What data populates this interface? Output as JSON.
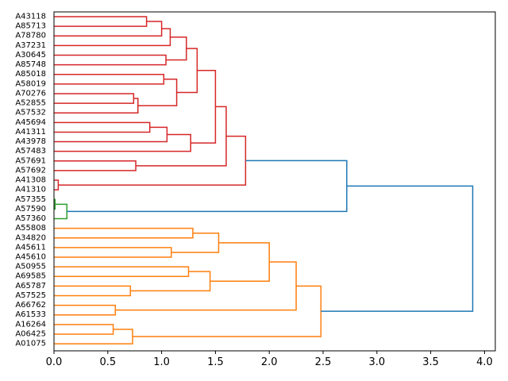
{
  "chart_data": {
    "type": "dendrogram",
    "orientation": "horizontal",
    "xlabel": "",
    "ylabel": "",
    "xlim": [
      0,
      4.1
    ],
    "xticks": [
      0.0,
      0.5,
      1.0,
      1.5,
      2.0,
      2.5,
      3.0,
      3.5,
      4.0
    ],
    "xtick_labels": [
      "0.0",
      "0.5",
      "1.0",
      "1.5",
      "2.0",
      "2.5",
      "3.0",
      "3.5",
      "4.0"
    ],
    "colors": {
      "red": "#d62728",
      "green": "#2ca02c",
      "orange": "#ff7f0e",
      "blue": "#1f77b4"
    },
    "leaves": [
      "A43118",
      "A85713",
      "A78780",
      "A37231",
      "A30645",
      "A85748",
      "A85018",
      "A58019",
      "A70276",
      "A52855",
      "A57532",
      "A45694",
      "A41311",
      "A43978",
      "A57483",
      "A57691",
      "A57692",
      "A41308",
      "A41310",
      "A57355",
      "A57590",
      "A57360",
      "A55808",
      "A34820",
      "A45611",
      "A45610",
      "A50955",
      "A69585",
      "A65787",
      "A57525",
      "A66762",
      "A61533",
      "A16264",
      "A06425",
      "A01075"
    ],
    "merges": [
      {
        "id": "m1",
        "children": [
          "A43118",
          "A85713"
        ],
        "height": 0.86,
        "color": "red"
      },
      {
        "id": "m2",
        "children": [
          "m1",
          "A78780"
        ],
        "height": 1.0,
        "color": "red"
      },
      {
        "id": "m3",
        "children": [
          "m2",
          "A37231"
        ],
        "height": 1.08,
        "color": "red"
      },
      {
        "id": "m4",
        "children": [
          "A30645",
          "A85748"
        ],
        "height": 1.04,
        "color": "red"
      },
      {
        "id": "m5",
        "children": [
          "m3",
          "m4"
        ],
        "height": 1.23,
        "color": "red"
      },
      {
        "id": "m6",
        "children": [
          "A85018",
          "A58019"
        ],
        "height": 1.02,
        "color": "red"
      },
      {
        "id": "m7",
        "children": [
          "A70276",
          "A52855"
        ],
        "height": 0.74,
        "color": "red"
      },
      {
        "id": "m8",
        "children": [
          "m7",
          "A57532"
        ],
        "height": 0.78,
        "color": "red"
      },
      {
        "id": "m9",
        "children": [
          "m6",
          "m8"
        ],
        "height": 1.14,
        "color": "red"
      },
      {
        "id": "m10",
        "children": [
          "m5",
          "m9"
        ],
        "height": 1.33,
        "color": "red"
      },
      {
        "id": "m11",
        "children": [
          "A45694",
          "A41311"
        ],
        "height": 0.89,
        "color": "red"
      },
      {
        "id": "m12",
        "children": [
          "m11",
          "A43978"
        ],
        "height": 1.05,
        "color": "red"
      },
      {
        "id": "m13",
        "children": [
          "m12",
          "A57483"
        ],
        "height": 1.27,
        "color": "red"
      },
      {
        "id": "m14",
        "children": [
          "m10",
          "m13"
        ],
        "height": 1.5,
        "color": "red"
      },
      {
        "id": "m15",
        "children": [
          "A57691",
          "A57692"
        ],
        "height": 0.76,
        "color": "red"
      },
      {
        "id": "m16",
        "children": [
          "m14",
          "m15"
        ],
        "height": 1.6,
        "color": "red"
      },
      {
        "id": "m17",
        "children": [
          "A41308",
          "A41310"
        ],
        "height": 0.04,
        "color": "red"
      },
      {
        "id": "m18",
        "children": [
          "m16",
          "m17"
        ],
        "height": 1.78,
        "color": "red"
      },
      {
        "id": "m19",
        "children": [
          "A57355",
          "A57590"
        ],
        "height": 0.01,
        "color": "green"
      },
      {
        "id": "m20",
        "children": [
          "m19",
          "A57360"
        ],
        "height": 0.12,
        "color": "green"
      },
      {
        "id": "m21",
        "children": [
          "m18",
          "m20"
        ],
        "height": 2.72,
        "color": "blue"
      },
      {
        "id": "m22",
        "children": [
          "A55808",
          "A34820"
        ],
        "height": 1.29,
        "color": "orange"
      },
      {
        "id": "m23",
        "children": [
          "A45611",
          "A45610"
        ],
        "height": 1.09,
        "color": "orange"
      },
      {
        "id": "m24",
        "children": [
          "m22",
          "m23"
        ],
        "height": 1.53,
        "color": "orange"
      },
      {
        "id": "m25",
        "children": [
          "A50955",
          "A69585"
        ],
        "height": 1.25,
        "color": "orange"
      },
      {
        "id": "m26",
        "children": [
          "A65787",
          "A57525"
        ],
        "height": 0.71,
        "color": "orange"
      },
      {
        "id": "m27",
        "children": [
          "m25",
          "m26"
        ],
        "height": 1.45,
        "color": "orange"
      },
      {
        "id": "m28",
        "children": [
          "m24",
          "m27"
        ],
        "height": 2.0,
        "color": "orange"
      },
      {
        "id": "m29",
        "children": [
          "A66762",
          "A61533"
        ],
        "height": 0.57,
        "color": "orange"
      },
      {
        "id": "m30",
        "children": [
          "m28",
          "m29"
        ],
        "height": 2.25,
        "color": "orange"
      },
      {
        "id": "m31",
        "children": [
          "A16264",
          "A06425"
        ],
        "height": 0.55,
        "color": "orange"
      },
      {
        "id": "m32",
        "children": [
          "m31",
          "A01075"
        ],
        "height": 0.73,
        "color": "orange"
      },
      {
        "id": "m33",
        "children": [
          "m30",
          "m32"
        ],
        "height": 2.48,
        "color": "orange"
      },
      {
        "id": "m34",
        "children": [
          "m21",
          "m33"
        ],
        "height": 3.89,
        "color": "blue"
      }
    ]
  }
}
